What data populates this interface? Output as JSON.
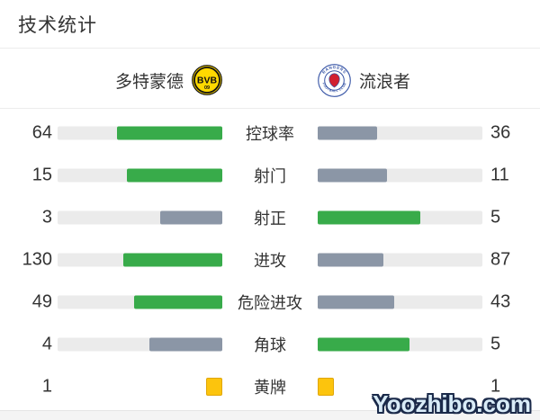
{
  "title": "技术统计",
  "watermark": "Yoozhibo.com",
  "teams": {
    "home": {
      "name": "多特蒙德",
      "logo": {
        "text": "BVB",
        "sub": "09",
        "bg": "#ffd900",
        "fg": "#111111"
      }
    },
    "away": {
      "name": "流浪者",
      "logo": {
        "ring_top": "RANGERS",
        "ring_bottom": "FOOTBALL CLUB",
        "ring_color": "#3a57a7",
        "center_color": "#d11f2f"
      }
    }
  },
  "colors": {
    "green": "#38ab4a",
    "slate": "#8b96a6",
    "track": "#ebebeb",
    "yellow": "#fcc40d",
    "text": "#333333"
  },
  "stats": [
    {
      "label": "控球率",
      "home": {
        "value": 64,
        "style": "green"
      },
      "away": {
        "value": 36,
        "style": "slate"
      },
      "display": "bar"
    },
    {
      "label": "射门",
      "home": {
        "value": 15,
        "style": "green"
      },
      "away": {
        "value": 11,
        "style": "slate"
      },
      "display": "bar"
    },
    {
      "label": "射正",
      "home": {
        "value": 3,
        "style": "slate"
      },
      "away": {
        "value": 5,
        "style": "green"
      },
      "display": "bar"
    },
    {
      "label": "进攻",
      "home": {
        "value": 130,
        "style": "green"
      },
      "away": {
        "value": 87,
        "style": "slate"
      },
      "display": "bar"
    },
    {
      "label": "危险进攻",
      "home": {
        "value": 49,
        "style": "green"
      },
      "away": {
        "value": 43,
        "style": "slate"
      },
      "display": "bar"
    },
    {
      "label": "角球",
      "home": {
        "value": 4,
        "style": "slate"
      },
      "away": {
        "value": 5,
        "style": "green"
      },
      "display": "bar"
    },
    {
      "label": "黄牌",
      "home": {
        "value": 1,
        "style": "yellow"
      },
      "away": {
        "value": 1,
        "style": "yellow"
      },
      "display": "card"
    }
  ],
  "chart_data": {
    "type": "bar",
    "orientation": "horizontal-paired",
    "title": "技术统计",
    "categories": [
      "控球率",
      "射门",
      "射正",
      "进攻",
      "危险进攻",
      "角球",
      "黄牌"
    ],
    "series": [
      {
        "name": "多特蒙德",
        "values": [
          64,
          15,
          3,
          130,
          49,
          4,
          1
        ]
      },
      {
        "name": "流浪者",
        "values": [
          36,
          11,
          5,
          87,
          43,
          5,
          1
        ]
      }
    ],
    "normalization": "each row's two bars are scaled to home/(home+away) share of the track width",
    "bar_color_rule": "leading side green (#38ab4a), trailing side slate gray (#8b96a6); yellow cards drawn as yellow card icons (#fcc40d)",
    "legend_position": "top (team names with club badges)"
  }
}
